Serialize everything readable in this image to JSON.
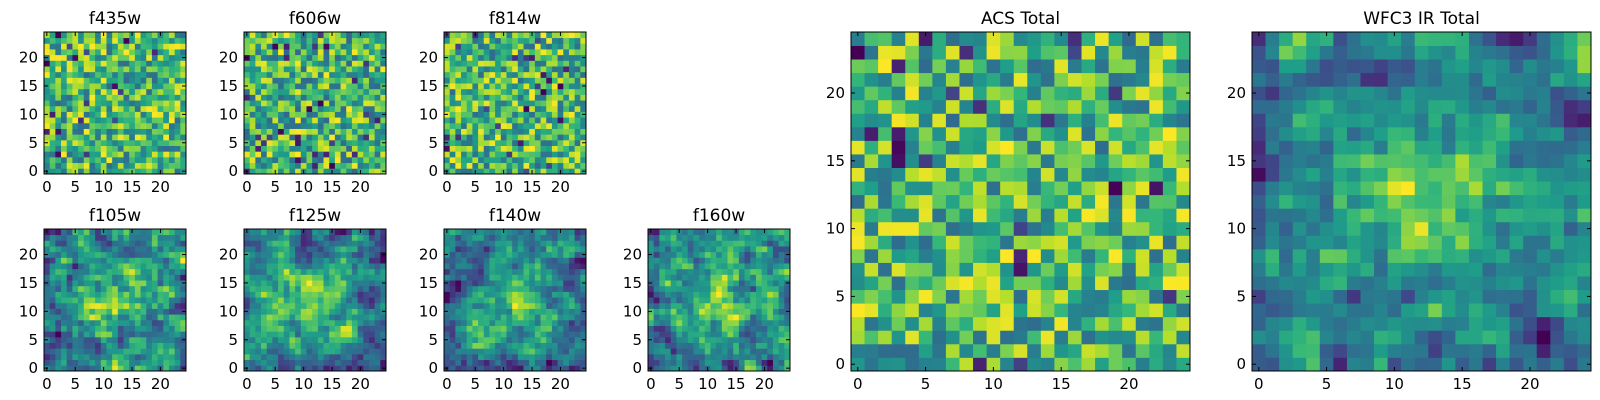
{
  "figure": {
    "description_free": true
  },
  "chart_data": [
    {
      "type": "heatmap",
      "title": "f435w",
      "xlim": [
        -0.5,
        24.5
      ],
      "ylim": [
        -0.5,
        24.5
      ],
      "xticks": [
        0,
        5,
        10,
        15,
        20
      ],
      "yticks": [
        0,
        5,
        10,
        15,
        20
      ],
      "rows": 25,
      "cols": 25,
      "seed": 11,
      "mode": "noisy"
    },
    {
      "type": "heatmap",
      "title": "f606w",
      "xlim": [
        -0.5,
        24.5
      ],
      "ylim": [
        -0.5,
        24.5
      ],
      "xticks": [
        0,
        5,
        10,
        15,
        20
      ],
      "yticks": [
        0,
        5,
        10,
        15,
        20
      ],
      "rows": 25,
      "cols": 25,
      "seed": 23,
      "mode": "noisy"
    },
    {
      "type": "heatmap",
      "title": "f814w",
      "xlim": [
        -0.5,
        24.5
      ],
      "ylim": [
        -0.5,
        24.5
      ],
      "xticks": [
        0,
        5,
        10,
        15,
        20
      ],
      "yticks": [
        0,
        5,
        10,
        15,
        20
      ],
      "rows": 25,
      "cols": 25,
      "seed": 37,
      "mode": "noisy"
    },
    {
      "type": "heatmap",
      "title": "f105w",
      "xlim": [
        -0.5,
        24.5
      ],
      "ylim": [
        -0.5,
        24.5
      ],
      "xticks": [
        0,
        5,
        10,
        15,
        20
      ],
      "yticks": [
        0,
        5,
        10,
        15,
        20
      ],
      "rows": 25,
      "cols": 25,
      "seed": 41,
      "mode": "smooth"
    },
    {
      "type": "heatmap",
      "title": "f125w",
      "xlim": [
        -0.5,
        24.5
      ],
      "ylim": [
        -0.5,
        24.5
      ],
      "xticks": [
        0,
        5,
        10,
        15,
        20
      ],
      "yticks": [
        0,
        5,
        10,
        15,
        20
      ],
      "rows": 25,
      "cols": 25,
      "seed": 53,
      "mode": "smooth"
    },
    {
      "type": "heatmap",
      "title": "f140w",
      "xlim": [
        -0.5,
        24.5
      ],
      "ylim": [
        -0.5,
        24.5
      ],
      "xticks": [
        0,
        5,
        10,
        15,
        20
      ],
      "yticks": [
        0,
        5,
        10,
        15,
        20
      ],
      "rows": 25,
      "cols": 25,
      "seed": 67,
      "mode": "smooth"
    },
    {
      "type": "heatmap",
      "title": "f160w",
      "xlim": [
        -0.5,
        24.5
      ],
      "ylim": [
        -0.5,
        24.5
      ],
      "xticks": [
        0,
        5,
        10,
        15,
        20
      ],
      "yticks": [
        0,
        5,
        10,
        15,
        20
      ],
      "rows": 25,
      "cols": 25,
      "seed": 79,
      "mode": "smooth"
    },
    {
      "type": "heatmap",
      "title": "ACS Total",
      "xlim": [
        -0.5,
        24.5
      ],
      "ylim": [
        -0.5,
        24.5
      ],
      "xticks": [
        0,
        5,
        10,
        15,
        20
      ],
      "yticks": [
        0,
        5,
        10,
        15,
        20
      ],
      "rows": 25,
      "cols": 25,
      "seed": 97,
      "mode": "noisy"
    },
    {
      "type": "heatmap",
      "title": "WFC3 IR Total",
      "xlim": [
        -0.5,
        24.5
      ],
      "ylim": [
        -0.5,
        24.5
      ],
      "xticks": [
        0,
        5,
        10,
        15,
        20
      ],
      "yticks": [
        0,
        5,
        10,
        15,
        20
      ],
      "rows": 25,
      "cols": 25,
      "seed": 113,
      "mode": "smooth"
    }
  ]
}
